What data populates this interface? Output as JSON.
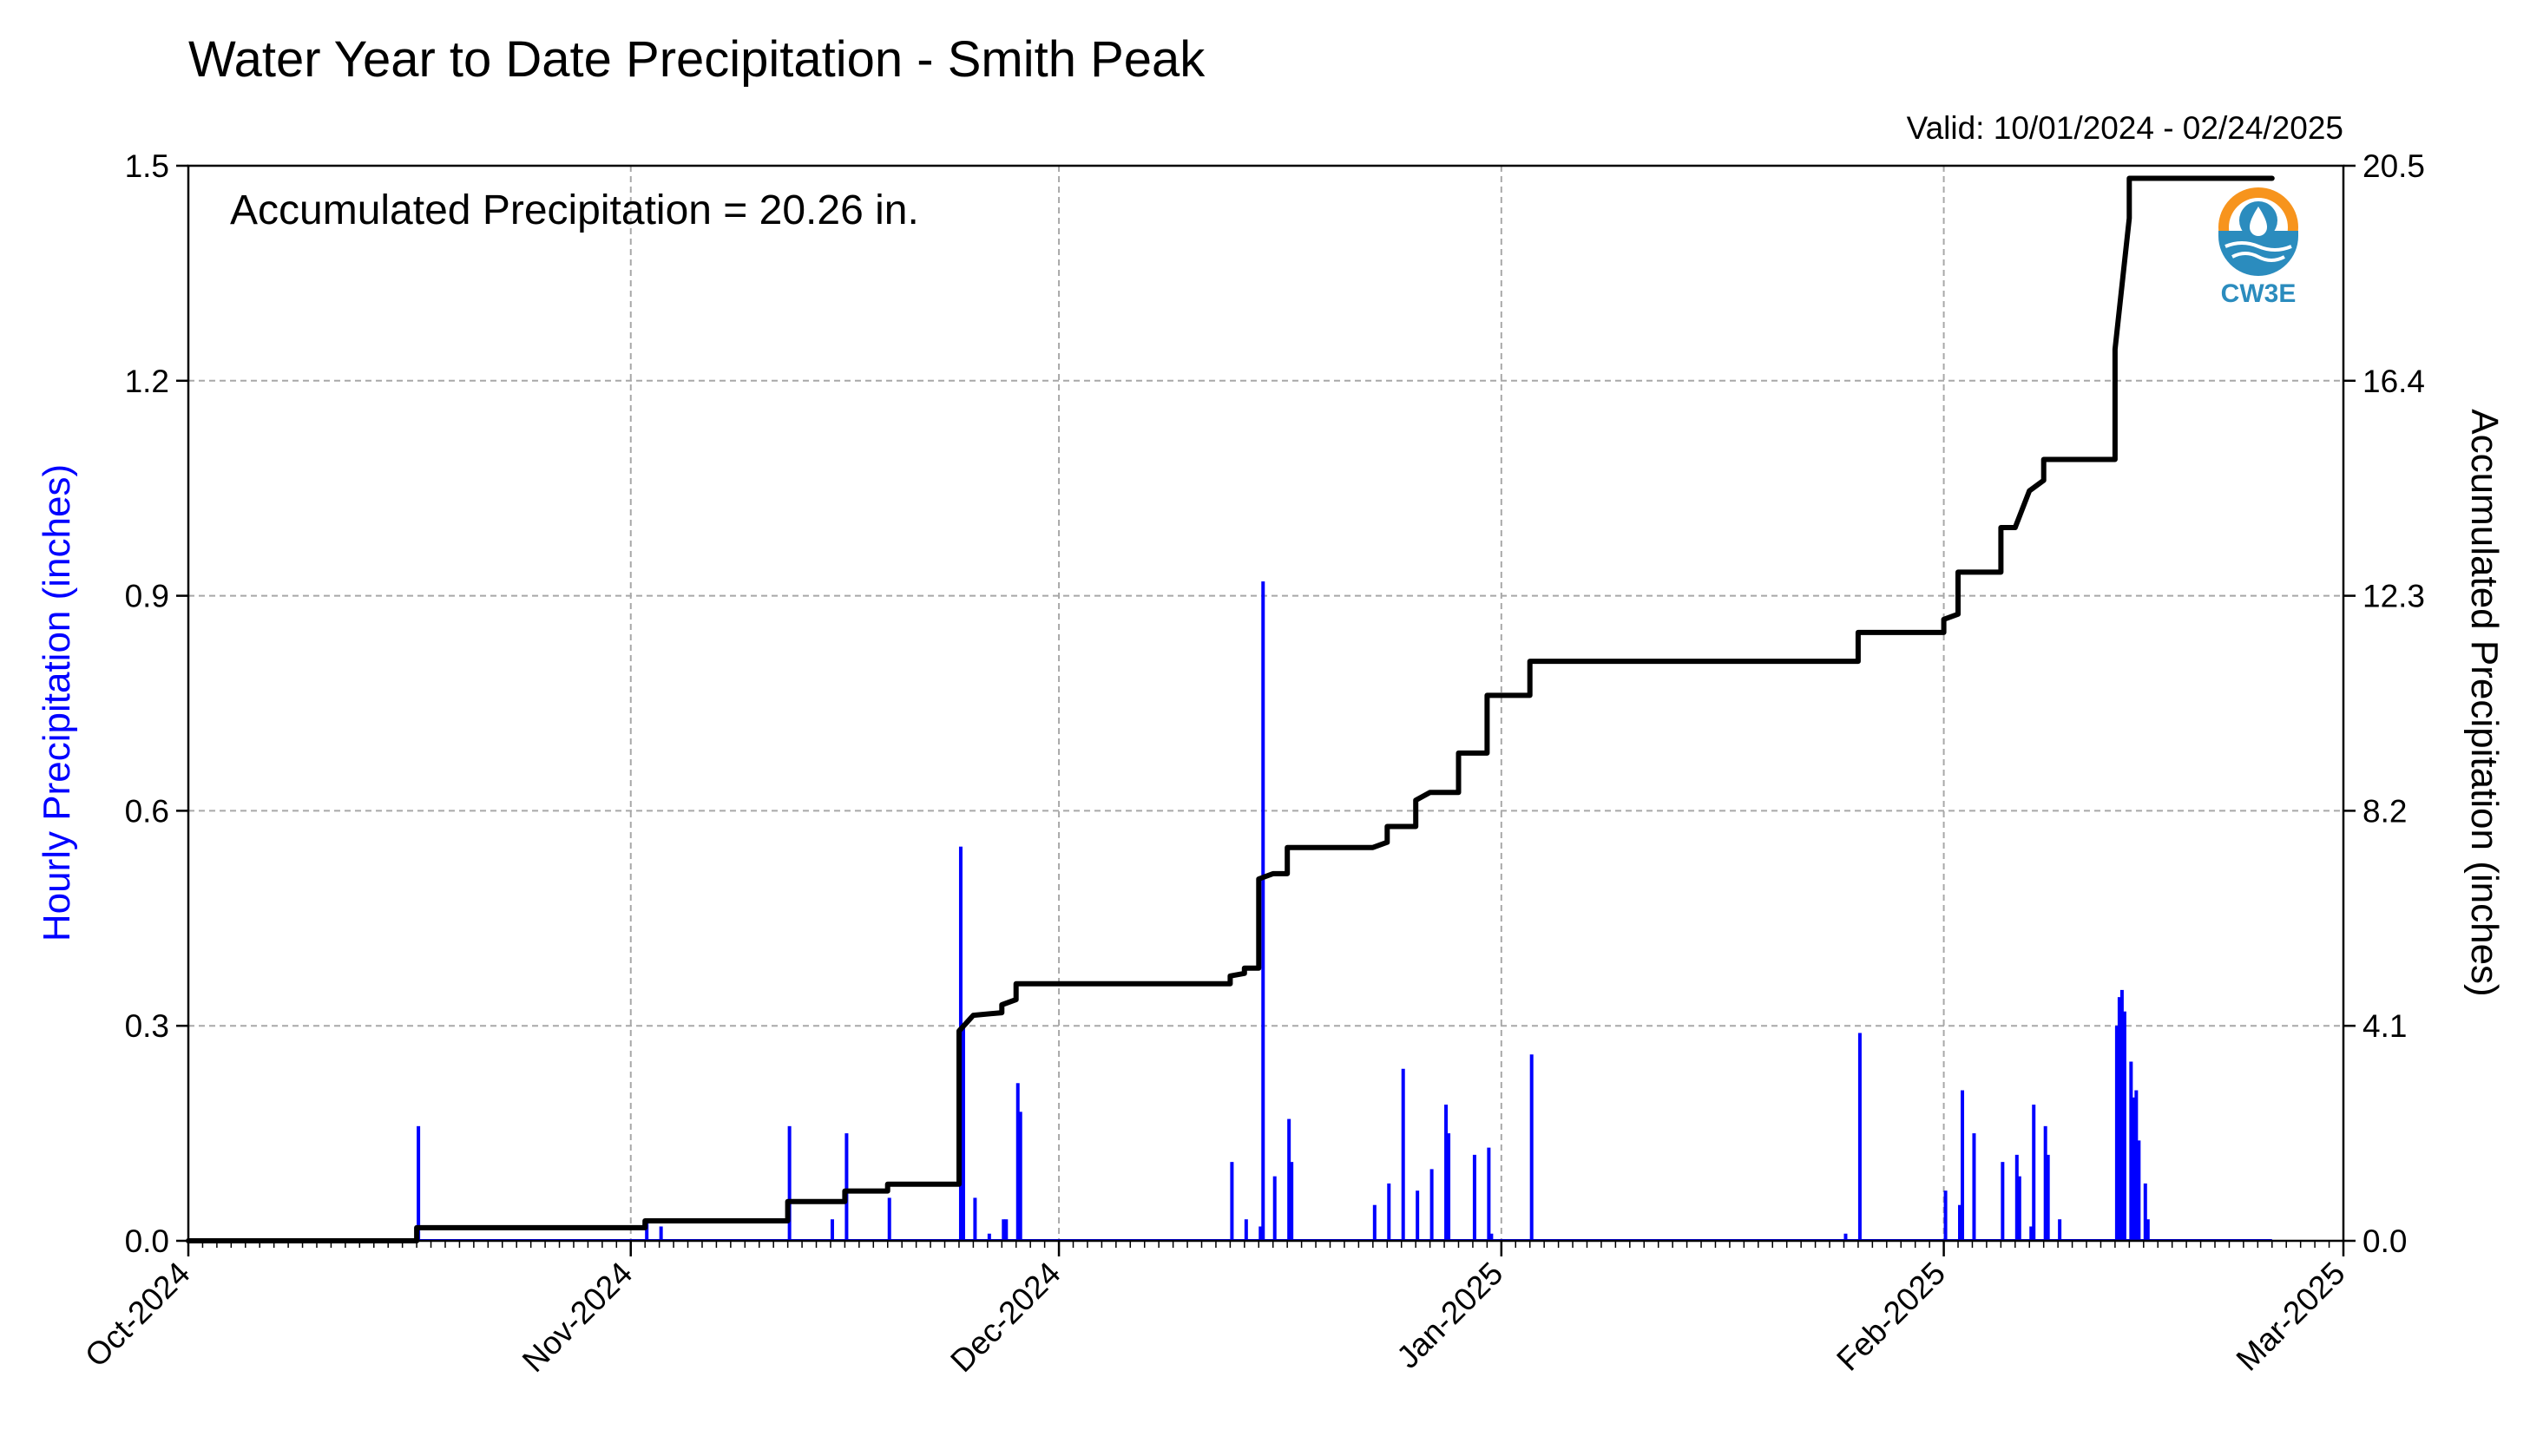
{
  "colors": {
    "hourly_bars": "#0000ff",
    "accumulated_line": "#000000",
    "grid": "#a8a8a8",
    "logo_orange": "#f7941d",
    "logo_blue": "#2b8cbe"
  },
  "logo": {
    "text": "CW3E"
  },
  "chart_data": {
    "type": "bar",
    "title": "Water Year to Date Precipitation - Smith Peak",
    "subtitle": "Valid: 10/01/2024 - 02/24/2025",
    "annotation": "Accumulated Precipitation = 20.26 in.",
    "xlabel": "",
    "ylabel": "Hourly Precipitation (inches)",
    "y2label": "Accumulated Precipitation (inches)",
    "grid": true,
    "x_range": [
      "2024-10-01",
      "2025-03-01"
    ],
    "x_ticks": [
      "Oct-2024",
      "Nov-2024",
      "Dec-2024",
      "Jan-2025",
      "Feb-2025",
      "Mar-2025"
    ],
    "x_tick_dates": [
      "2024-10-01",
      "2024-11-01",
      "2024-12-01",
      "2025-01-01",
      "2025-02-01",
      "2025-03-01"
    ],
    "ylim": [
      0,
      1.5
    ],
    "y_ticks": [
      "0.0",
      "0.3",
      "0.6",
      "0.9",
      "1.2",
      "1.5"
    ],
    "y2lim": [
      0,
      20.5
    ],
    "y2_ticks": [
      "0.0",
      "4.1",
      "8.2",
      "12.3",
      "16.4",
      "20.5"
    ],
    "series": [
      {
        "name": "Hourly Precipitation (inches)",
        "type": "bar",
        "points": [
          [
            "2024-10-17",
            0.16
          ],
          [
            "2024-11-02",
            0.03
          ],
          [
            "2024-11-03",
            0.02
          ],
          [
            "2024-11-12",
            0.16
          ],
          [
            "2024-11-15",
            0.03
          ],
          [
            "2024-11-16",
            0.15
          ],
          [
            "2024-11-19",
            0.06
          ],
          [
            "2024-11-24",
            0.55
          ],
          [
            "2024-11-24",
            0.3
          ],
          [
            "2024-11-25",
            0.06
          ],
          [
            "2024-11-26",
            0.01
          ],
          [
            "2024-11-27",
            0.03
          ],
          [
            "2024-11-27",
            0.03
          ],
          [
            "2024-11-28",
            0.22
          ],
          [
            "2024-11-28",
            0.18
          ],
          [
            "2024-12-13",
            0.11
          ],
          [
            "2024-12-14",
            0.03
          ],
          [
            "2024-12-15",
            0.02
          ],
          [
            "2024-12-15",
            0.92
          ],
          [
            "2024-12-16",
            0.09
          ],
          [
            "2024-12-17",
            0.17
          ],
          [
            "2024-12-17",
            0.11
          ],
          [
            "2024-12-23",
            0.05
          ],
          [
            "2024-12-24",
            0.08
          ],
          [
            "2024-12-25",
            0.24
          ],
          [
            "2024-12-26",
            0.07
          ],
          [
            "2024-12-27",
            0.1
          ],
          [
            "2024-12-28",
            0.19
          ],
          [
            "2024-12-28",
            0.15
          ],
          [
            "2024-12-30",
            0.12
          ],
          [
            "2024-12-31",
            0.13
          ],
          [
            "2024-12-31",
            0.01
          ],
          [
            "2025-01-03",
            0.26
          ],
          [
            "2025-01-25",
            0.01
          ],
          [
            "2025-01-26",
            0.29
          ],
          [
            "2025-02-01",
            0.07
          ],
          [
            "2025-02-02",
            0.05
          ],
          [
            "2025-02-02",
            0.21
          ],
          [
            "2025-02-03",
            0.15
          ],
          [
            "2025-02-05",
            0.11
          ],
          [
            "2025-02-06",
            0.12
          ],
          [
            "2025-02-06",
            0.09
          ],
          [
            "2025-02-07",
            0.02
          ],
          [
            "2025-02-07",
            0.19
          ],
          [
            "2025-02-08",
            0.16
          ],
          [
            "2025-02-08",
            0.12
          ],
          [
            "2025-02-09",
            0.03
          ],
          [
            "2025-02-13",
            0.3
          ],
          [
            "2025-02-13",
            0.34
          ],
          [
            "2025-02-13",
            0.35
          ],
          [
            "2025-02-13",
            0.32
          ],
          [
            "2025-02-14",
            0.25
          ],
          [
            "2025-02-14",
            0.2
          ],
          [
            "2025-02-14",
            0.21
          ],
          [
            "2025-02-14",
            0.14
          ],
          [
            "2025-02-15",
            0.08
          ],
          [
            "2025-02-15",
            0.03
          ]
        ]
      },
      {
        "name": "Accumulated Precipitation (inches)",
        "type": "line",
        "axis": "right",
        "points": [
          [
            "2024-10-01",
            0.0
          ],
          [
            "2024-10-17",
            0.0
          ],
          [
            "2024-10-17",
            0.25
          ],
          [
            "2024-11-02",
            0.25
          ],
          [
            "2024-11-02",
            0.38
          ],
          [
            "2024-11-12",
            0.38
          ],
          [
            "2024-11-12",
            0.75
          ],
          [
            "2024-11-16",
            0.75
          ],
          [
            "2024-11-16",
            0.95
          ],
          [
            "2024-11-19",
            0.95
          ],
          [
            "2024-11-19",
            1.08
          ],
          [
            "2024-11-24",
            1.08
          ],
          [
            "2024-11-24",
            4.0
          ],
          [
            "2024-11-25",
            4.3
          ],
          [
            "2024-11-27",
            4.35
          ],
          [
            "2024-11-27",
            4.5
          ],
          [
            "2024-11-28",
            4.6
          ],
          [
            "2024-11-28",
            4.9
          ],
          [
            "2024-12-13",
            4.9
          ],
          [
            "2024-12-13",
            5.05
          ],
          [
            "2024-12-14",
            5.1
          ],
          [
            "2024-12-14",
            5.2
          ],
          [
            "2024-12-15",
            5.2
          ],
          [
            "2024-12-15",
            6.9
          ],
          [
            "2024-12-16",
            7.0
          ],
          [
            "2024-12-17",
            7.0
          ],
          [
            "2024-12-17",
            7.5
          ],
          [
            "2024-12-23",
            7.5
          ],
          [
            "2024-12-24",
            7.6
          ],
          [
            "2024-12-24",
            7.9
          ],
          [
            "2024-12-26",
            7.9
          ],
          [
            "2024-12-26",
            8.4
          ],
          [
            "2024-12-27",
            8.55
          ],
          [
            "2024-12-29",
            8.55
          ],
          [
            "2024-12-29",
            9.3
          ],
          [
            "2024-12-31",
            9.3
          ],
          [
            "2024-12-31",
            10.4
          ],
          [
            "2025-01-03",
            10.4
          ],
          [
            "2025-01-03",
            11.05
          ],
          [
            "2025-01-26",
            11.05
          ],
          [
            "2025-01-26",
            11.6
          ],
          [
            "2025-02-01",
            11.6
          ],
          [
            "2025-02-01",
            11.85
          ],
          [
            "2025-02-02",
            11.95
          ],
          [
            "2025-02-02",
            12.75
          ],
          [
            "2025-02-05",
            12.75
          ],
          [
            "2025-02-05",
            13.6
          ],
          [
            "2025-02-06",
            13.6
          ],
          [
            "2025-02-07",
            14.3
          ],
          [
            "2025-02-08",
            14.5
          ],
          [
            "2025-02-08",
            14.9
          ],
          [
            "2025-02-13",
            14.9
          ],
          [
            "2025-02-13",
            17.0
          ],
          [
            "2025-02-14",
            19.5
          ],
          [
            "2025-02-14",
            20.26
          ],
          [
            "2025-02-24",
            20.26
          ]
        ]
      }
    ]
  }
}
